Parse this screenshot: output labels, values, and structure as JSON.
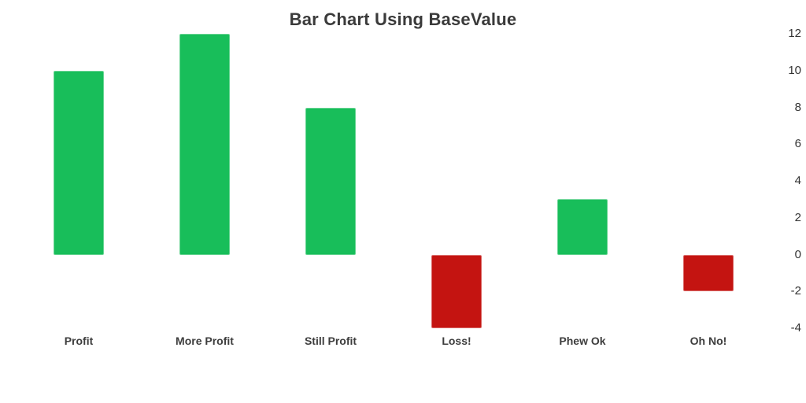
{
  "chart_data": {
    "type": "bar",
    "title": "Bar Chart Using BaseValue",
    "categories": [
      "Profit",
      "More Profit",
      "Still Profit",
      "Loss!",
      "Phew Ok",
      "Oh No!"
    ],
    "values": [
      10,
      12,
      8,
      -4,
      3,
      -2
    ],
    "base_value": 0,
    "xlabel": "",
    "ylabel": "",
    "ylim": [
      -4,
      12
    ],
    "y_ticks": [
      12,
      10,
      8,
      6,
      4,
      2,
      0,
      -2,
      -4
    ],
    "y_axis_position": "right",
    "grid": false,
    "legend": false,
    "colors": {
      "positive": "#18be5a",
      "negative": "#c41411",
      "title_text": "#3a3a3a",
      "axis_text": "#333333",
      "category_text": "#3d3d3d",
      "background": "#ffffff"
    }
  }
}
